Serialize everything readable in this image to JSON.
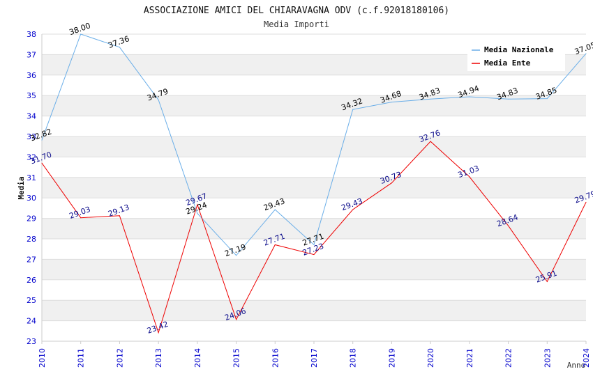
{
  "chart_data": {
    "type": "line",
    "title": "ASSOCIAZIONE AMICI DEL CHIARAVAGNA ODV (c.f.92018180106)",
    "subtitle": "Media Importi",
    "xlabel": "Anno",
    "ylabel": "Media",
    "ylim": [
      23,
      38
    ],
    "yticks": [
      "23",
      "24",
      "25",
      "26",
      "27",
      "28",
      "29",
      "30",
      "31",
      "32",
      "33",
      "34",
      "35",
      "36",
      "37",
      "38"
    ],
    "categories": [
      "2010",
      "2011",
      "2012",
      "2013",
      "2014",
      "2015",
      "2016",
      "2017",
      "2018",
      "2019",
      "2020",
      "2021",
      "2022",
      "2023",
      "2024"
    ],
    "grid": true,
    "legend_position": "top-right",
    "series": [
      {
        "name": "Media Nazionale",
        "color": "#6aaee8",
        "label_color": "#000000",
        "values": [
          32.82,
          38.0,
          37.36,
          34.79,
          29.24,
          27.19,
          29.43,
          27.71,
          34.32,
          34.68,
          34.83,
          34.94,
          34.83,
          34.85,
          37.05
        ],
        "labels": [
          "32.82",
          "38.00",
          "37.36",
          "34.79",
          "29.24",
          "27.19",
          "29.43",
          "27.71",
          "34.32",
          "34.68",
          "34.83",
          "34.94",
          "34.83",
          "34.85",
          "37.05"
        ]
      },
      {
        "name": "Media Ente",
        "color": "#ee0000",
        "label_color": "#0a0a8a",
        "values": [
          31.7,
          29.03,
          29.13,
          23.42,
          29.67,
          24.06,
          27.71,
          27.23,
          29.43,
          30.73,
          32.76,
          31.03,
          28.64,
          25.91,
          29.79
        ],
        "labels": [
          "31.70",
          "29.03",
          "29.13",
          "23.42",
          "29.67",
          "24.06",
          "27.71",
          "27.23",
          "29.43",
          "30.73",
          "32.76",
          "31.03",
          "28.64",
          "25.91",
          "29.79"
        ]
      }
    ],
    "colors": {
      "axis_tick_text": "#0000cc",
      "band": "#f0f0f0",
      "grid": "#dddddd"
    }
  }
}
